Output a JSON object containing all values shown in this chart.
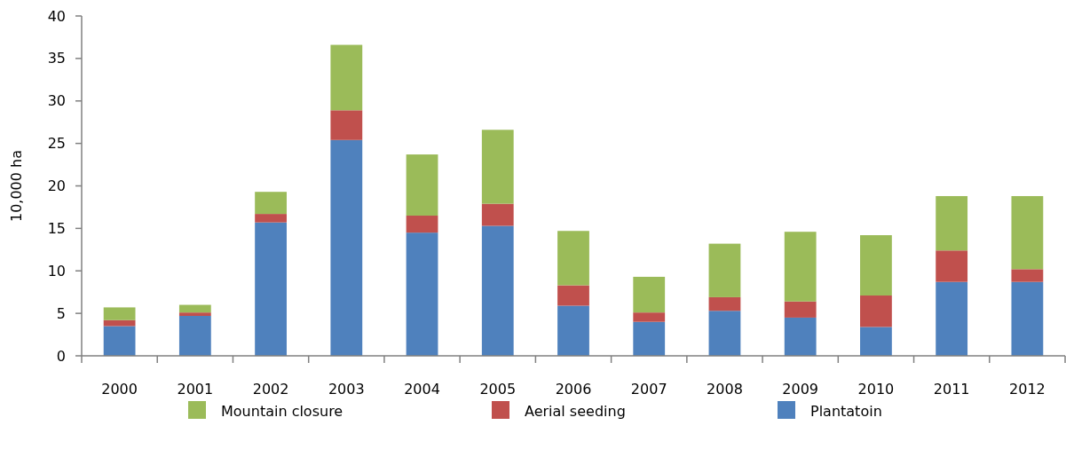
{
  "chart_data": {
    "type": "bar",
    "stacked": true,
    "ylabel": "10,000 ha",
    "categories": [
      "2000",
      "2001",
      "2002",
      "2003",
      "2004",
      "2005",
      "2006",
      "2007",
      "2008",
      "2009",
      "2010",
      "2011",
      "2012"
    ],
    "series": [
      {
        "name": "Plantatoin",
        "color": "#4f81bd",
        "values": [
          3.5,
          4.7,
          15.7,
          25.4,
          14.5,
          15.3,
          5.9,
          4.0,
          5.3,
          4.5,
          3.4,
          8.7,
          8.7
        ]
      },
      {
        "name": "Aerial seeding",
        "color": "#c0504d",
        "values": [
          0.7,
          0.4,
          1.0,
          3.5,
          2.0,
          2.6,
          2.4,
          1.1,
          1.6,
          1.9,
          3.7,
          3.7,
          1.5
        ]
      },
      {
        "name": "Mountain closure",
        "color": "#9bbb59",
        "values": [
          1.5,
          0.9,
          2.6,
          7.7,
          7.2,
          8.7,
          6.4,
          4.2,
          6.3,
          8.2,
          7.1,
          6.4,
          8.6
        ]
      }
    ],
    "ylim": [
      0,
      40
    ],
    "yticks": [
      0,
      5,
      10,
      15,
      20,
      25,
      30,
      35,
      40
    ],
    "grid": false,
    "legend": "bottom"
  }
}
